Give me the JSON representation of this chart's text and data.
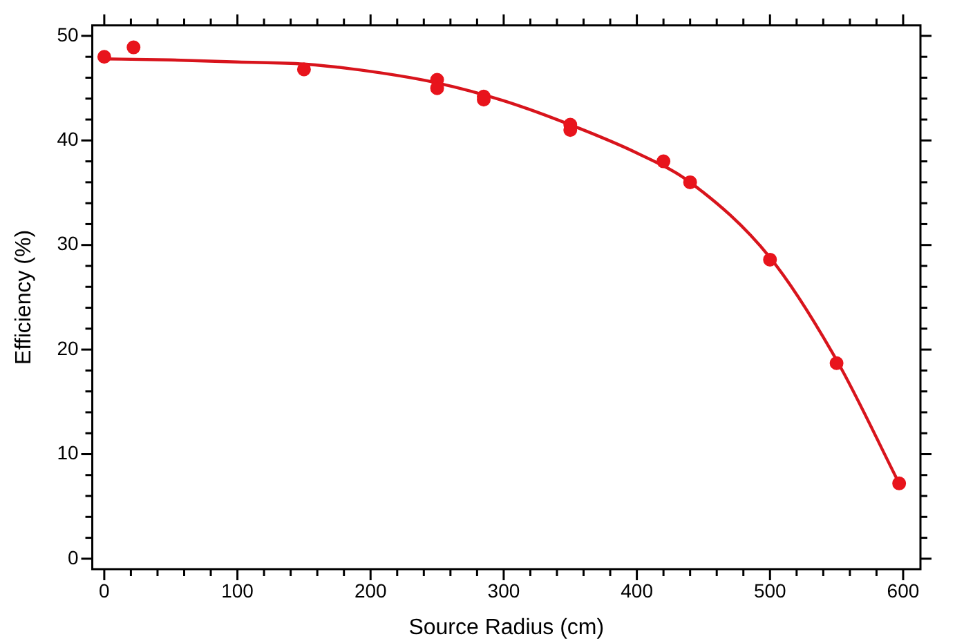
{
  "chart_data": {
    "type": "scatter",
    "xlabel": "Source Radius (cm)",
    "ylabel": "Efficiency (%)",
    "xlim": [
      -9,
      613
    ],
    "ylim": [
      -1,
      51
    ],
    "xticks": [
      0,
      100,
      200,
      300,
      400,
      500,
      600
    ],
    "yticks": [
      0,
      10,
      20,
      30,
      40,
      50
    ],
    "grid": false,
    "legend": false,
    "marker": "circle",
    "series": [
      {
        "color": "#e8141c",
        "x": [
          0,
          22,
          150,
          250,
          250,
          285,
          285,
          350,
          350,
          420,
          440,
          500,
          550,
          597
        ],
        "values": [
          48,
          48.9,
          46.8,
          45.8,
          45,
          44.2,
          43.9,
          41.5,
          41,
          38,
          36,
          28.6,
          18.7,
          7.2
        ]
      },
      {
        "type": "line",
        "color": "#d8141c",
        "marker": "none",
        "line_style": "solid",
        "x": [
          0,
          50,
          100,
          150,
          200,
          250,
          300,
          350,
          400,
          440,
          500,
          550,
          597
        ],
        "values": [
          47.8,
          47.7,
          47.5,
          47.3,
          46.6,
          45.5,
          43.8,
          41.5,
          38.8,
          36,
          28.8,
          19,
          7.2
        ]
      }
    ]
  }
}
